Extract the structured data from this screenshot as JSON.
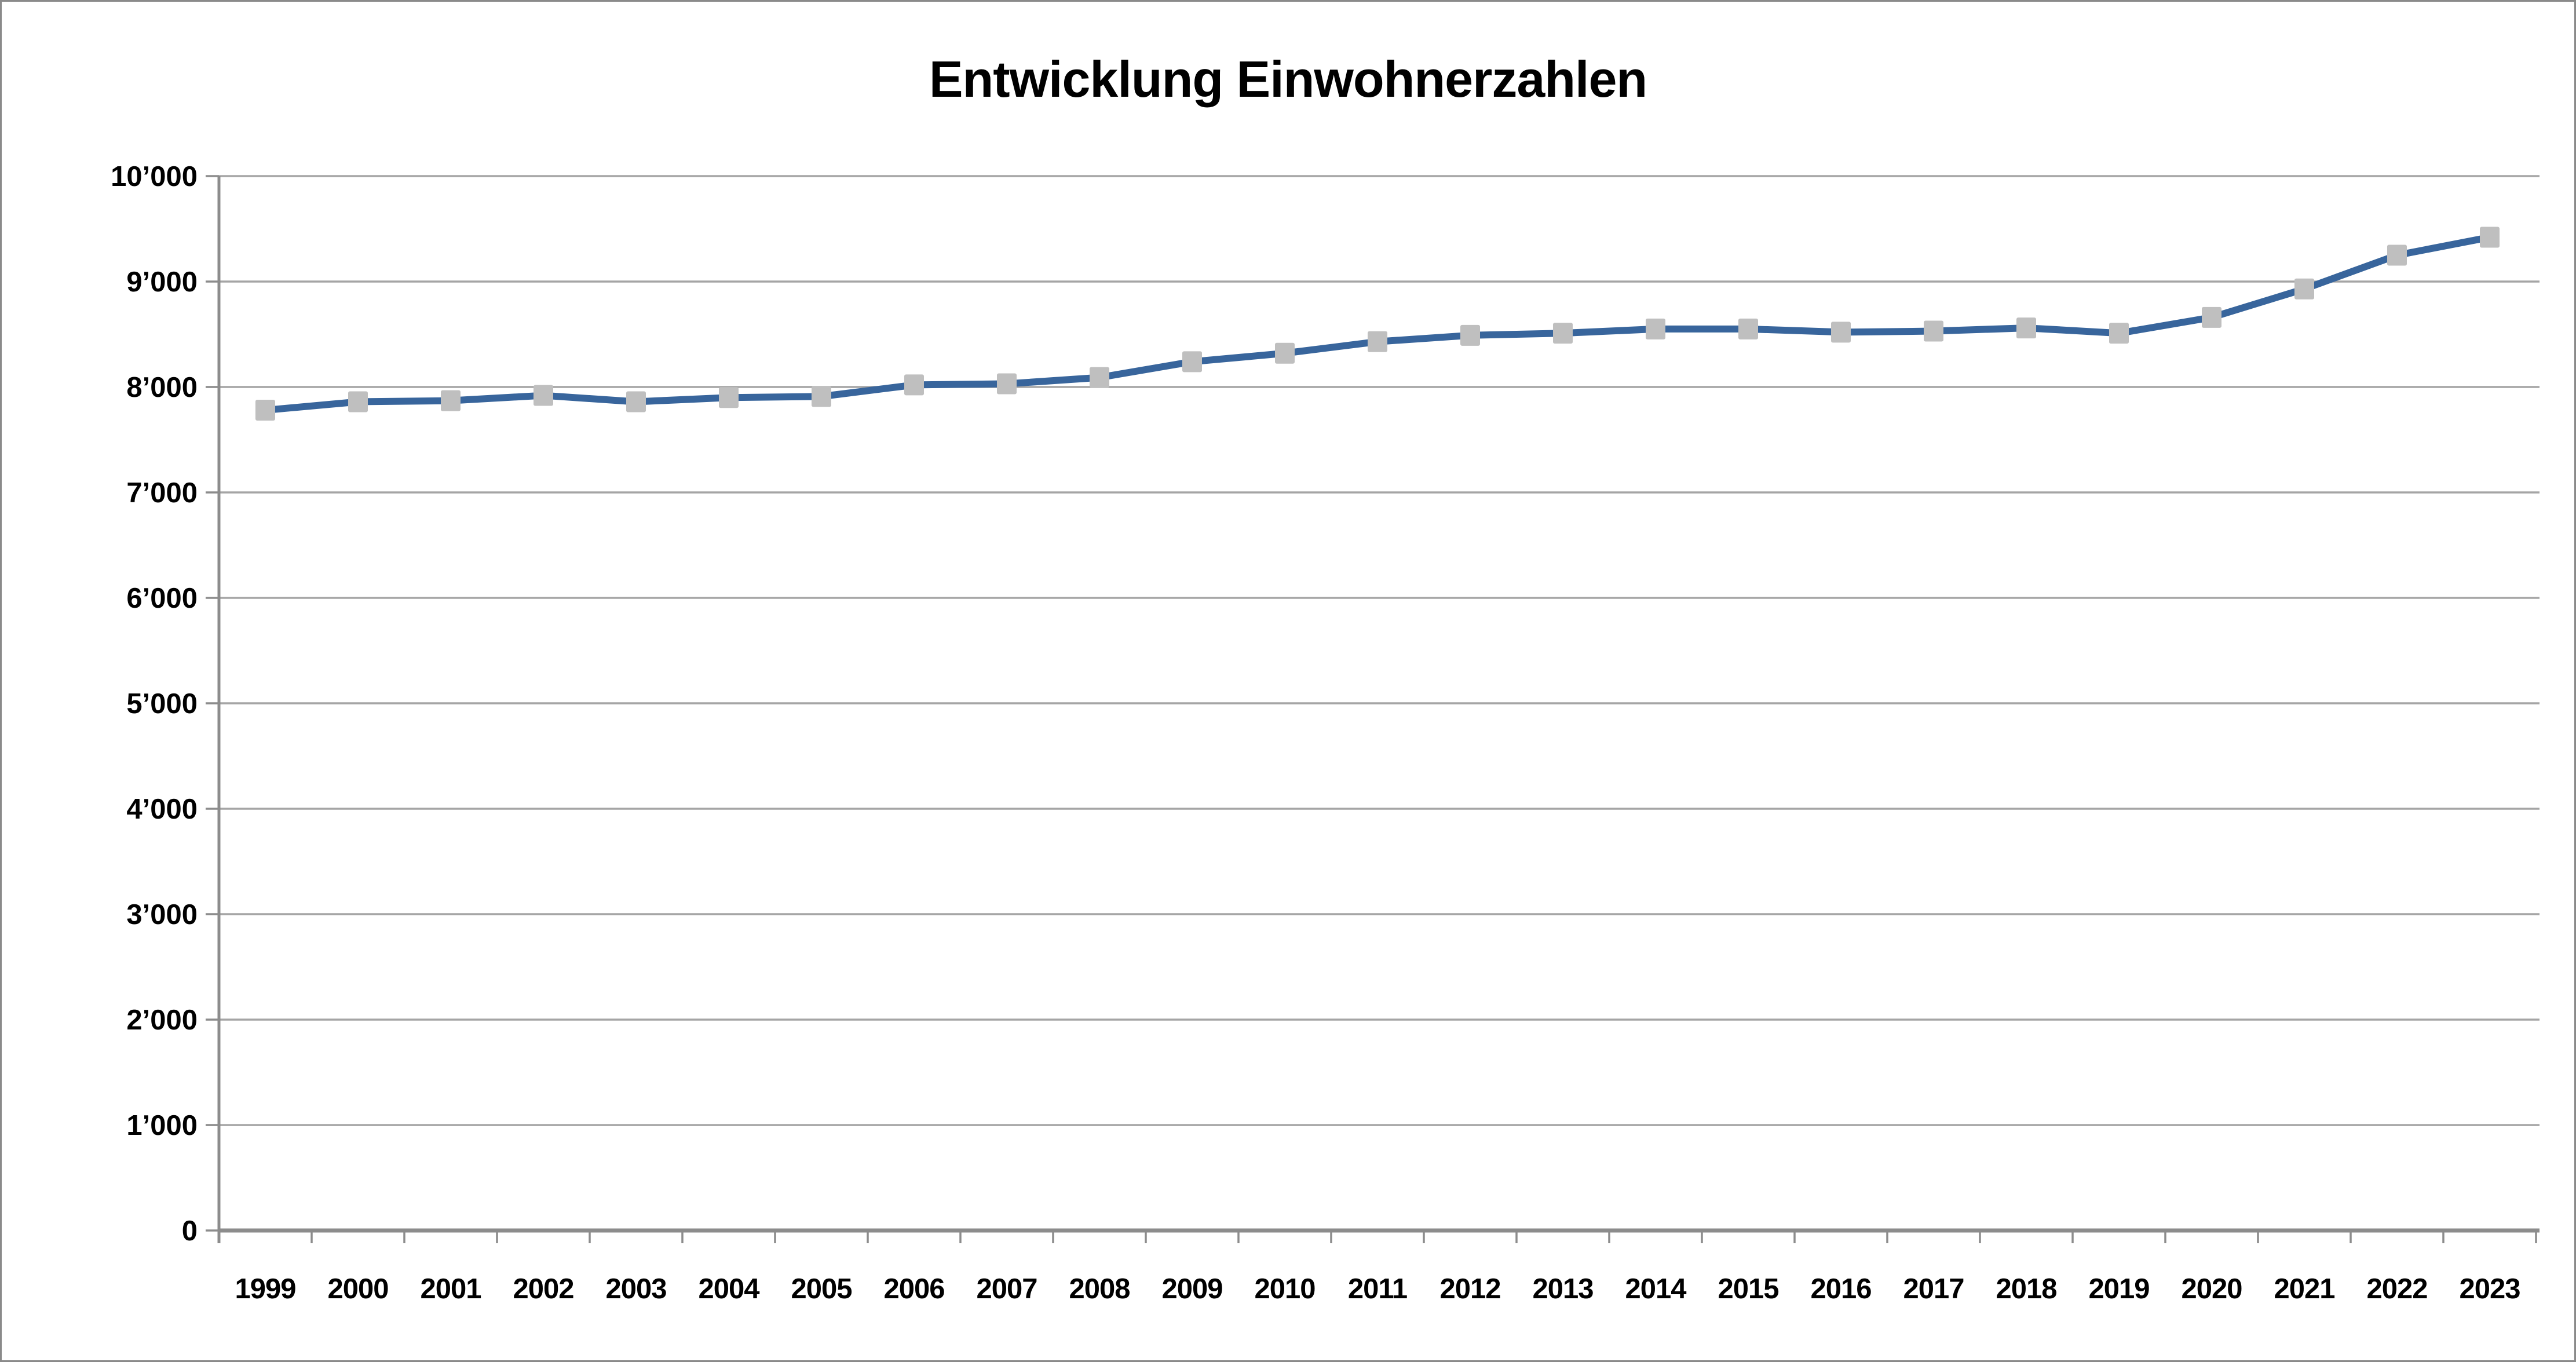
{
  "window": {
    "background_color": "#FFFFFF",
    "border_color": "#8A8A8A"
  },
  "chart_data": {
    "type": "line",
    "title": "Entwicklung Einwohnerzahlen",
    "categories": [
      "1999",
      "2000",
      "2001",
      "2002",
      "2003",
      "2004",
      "2005",
      "2006",
      "2007",
      "2008",
      "2009",
      "2010",
      "2011",
      "2012",
      "2013",
      "2014",
      "2015",
      "2016",
      "2017",
      "2018",
      "2019",
      "2020",
      "2021",
      "2022",
      "2023"
    ],
    "values": [
      7780,
      7860,
      7870,
      7920,
      7860,
      7900,
      7910,
      8020,
      8030,
      8090,
      8240,
      8320,
      8430,
      8490,
      8510,
      8550,
      8550,
      8520,
      8530,
      8560,
      8510,
      8660,
      8930,
      9250,
      9420
    ],
    "xlabel": "",
    "ylabel": "",
    "ylim": [
      0,
      10000
    ],
    "y_tick_step": 1000,
    "y_tick_labels": [
      "0",
      "1’000",
      "2’000",
      "3’000",
      "4’000",
      "5’000",
      "6’000",
      "7’000",
      "8’000",
      "9’000",
      "10’000"
    ],
    "thousands_separator": "’",
    "grid": true,
    "legend": "none",
    "series_name": "",
    "line_color": "#38659C",
    "marker_color": "#BFBFBF",
    "marker_shape": "square",
    "gridline_color": "#A5A5A5",
    "axis_color": "#8C8C8C",
    "label_color": "#000000"
  }
}
